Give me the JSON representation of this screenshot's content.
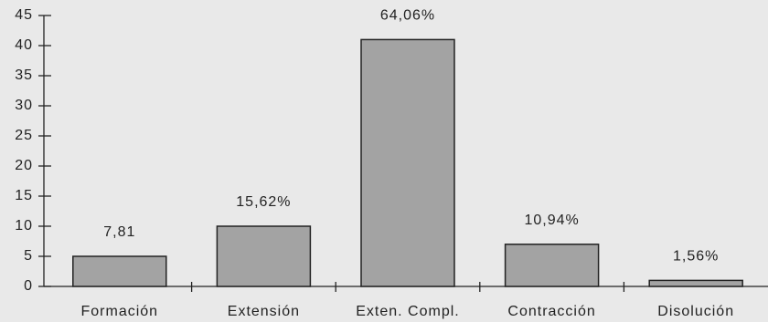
{
  "chart_data": {
    "type": "bar",
    "categories": [
      "Formación",
      "Extensión",
      "Exten. Compl.",
      "Contracción",
      "Disolución"
    ],
    "values": [
      5,
      10,
      41,
      7,
      1
    ],
    "annotations": [
      "7,81",
      "15,62%",
      "64,06%",
      "10,94%",
      "1,56%"
    ],
    "color": "#a3a3a3",
    "ylim": [
      0,
      45
    ],
    "yticks": [
      0,
      5,
      10,
      15,
      20,
      25,
      30,
      35,
      40,
      45
    ],
    "grid": false
  }
}
